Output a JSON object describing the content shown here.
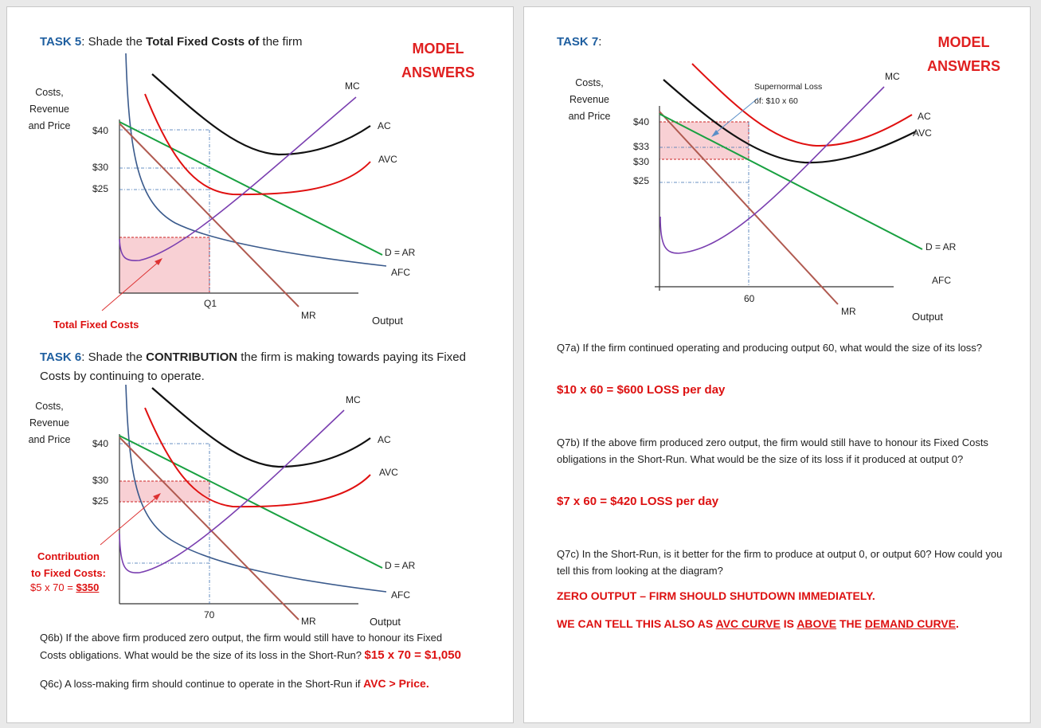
{
  "colors": {
    "task_blue": "#1f5fa0",
    "answer_red": "#e02020",
    "mc": "#7a3fb0",
    "ac": "#111111",
    "avc": "#e01010",
    "demand": "#18a040",
    "afc": "#3a5a8c",
    "mr": "#b05a50",
    "shade_fill": "#f8d0d4",
    "guide": "#3a6fb0"
  },
  "left": {
    "model_answers": [
      "MODEL",
      "ANSWERS"
    ],
    "task5": {
      "num": "TASK 5",
      "pre": ": Shade the ",
      "bold": "Total Fixed Costs of",
      "post": " the firm",
      "y_axis": [
        "Costs,",
        "Revenue",
        "and Price"
      ],
      "prices": [
        "$40",
        "$30",
        "$25"
      ],
      "q_label": "Q1",
      "curves": {
        "mc": "MC",
        "ac": "AC",
        "avc": "AVC",
        "dar": "D = AR",
        "afc": "AFC",
        "mr": "MR"
      },
      "x_axis": "Output",
      "shade_label": "Total Fixed Costs"
    },
    "task6": {
      "num": "TASK 6",
      "pre": ": Shade the ",
      "bold": "CONTRIBUTION",
      "post": " the firm is making towards paying its Fixed",
      "line2": "Costs by continuing to operate.",
      "y_axis": [
        "Costs,",
        "Revenue",
        "and Price"
      ],
      "prices": [
        "$40",
        "$30",
        "$25"
      ],
      "q_label": "70",
      "curves": {
        "mc": "MC",
        "ac": "AC",
        "avc": "AVC",
        "dar": "D = AR",
        "afc": "AFC",
        "mr": "MR"
      },
      "x_axis": "Output",
      "shade_label": [
        "Contribution",
        "to Fixed Costs:"
      ],
      "shade_calc_pre": "$5 x 70 = ",
      "shade_calc_val": "$350"
    },
    "q6b": {
      "text1": "Q6b) If the above firm produced zero output, the firm would still have to honour its Fixed",
      "text2": "Costs obligations. What would be the size of its loss in the Short-Run? ",
      "answer": "$15 x 70 = $1,050"
    },
    "q6c": {
      "text": "Q6c) A loss-making firm should continue to operate in the Short-Run if ",
      "answer": "AVC > Price."
    }
  },
  "right": {
    "model_answers": [
      "MODEL",
      "ANSWERS"
    ],
    "task7": {
      "num": "TASK 7",
      "post": ":",
      "y_axis": [
        "Costs,",
        "Revenue",
        "and Price"
      ],
      "prices": [
        "$40",
        "$33",
        "$30",
        "$25"
      ],
      "q_label": "60",
      "annotation": [
        "Supernormal Loss",
        "of: $10 x 60"
      ],
      "curves": {
        "mc": "MC",
        "ac": "AC",
        "avc": "AVC",
        "dar": "D = AR",
        "afc": "AFC",
        "mr": "MR"
      },
      "x_axis": "Output"
    },
    "q7a": {
      "text": "Q7a) If the firm continued operating and producing output 60, what would the size of its loss?",
      "answer": "$10 x 60 = $600 LOSS per day"
    },
    "q7b": {
      "text": "Q7b) If the above firm produced zero output, the firm would still have to honour its Fixed Costs obligations in the Short-Run. What would be the size of its loss if it produced at output 0?",
      "answer": "$7 x 60 = $420 LOSS per day"
    },
    "q7c": {
      "text": "Q7c) In the Short-Run, is it better for the firm to produce at output 0, or output 60? How could you tell this from looking at the diagram?",
      "answer1": "ZERO OUTPUT – FIRM SHOULD SHUTDOWN IMMEDIATELY.",
      "answer2_parts": [
        "WE CAN TELL THIS ALSO AS ",
        "AVC CURVE",
        " IS ",
        "ABOVE",
        " THE ",
        "DEMAND CURVE",
        "."
      ]
    }
  }
}
